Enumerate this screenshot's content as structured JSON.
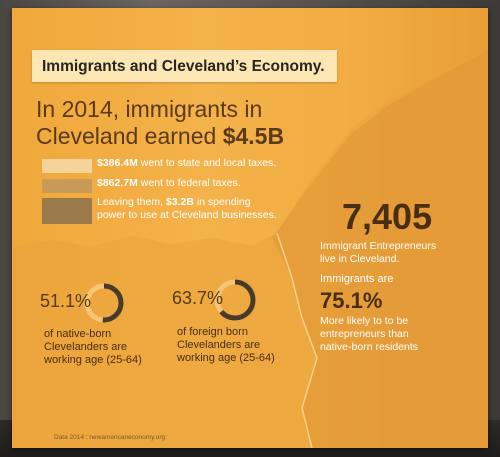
{
  "title": "Immigrants and Cleveland’s Economy.",
  "headline": {
    "line1": "In 2014, immigrants in",
    "line2_prefix": "Cleveland earned ",
    "line2_amount": "$4.5B"
  },
  "taxes": [
    {
      "amount": "$386.4M",
      "text": " went to state and local taxes.",
      "color": "#f6d39a"
    },
    {
      "amount": "$862.7M",
      "text": " went to federal taxes.",
      "color": "#c89a5a"
    },
    {
      "prefix": "Leaving them, ",
      "amount": "$3.2B",
      "text": " in spending",
      "line2": "power to use at Cleveland businesses.",
      "color": "#9a7a4a"
    }
  ],
  "entrepreneurs": {
    "number": "7,405",
    "desc_line1": "Immigrant Entrepreneurs",
    "desc_line2": "live in Cleveland."
  },
  "likely": {
    "label": "Immigrants are",
    "number": "75.1%",
    "desc_line1": "More likely to to be",
    "desc_line2": "entrepreneurs than",
    "desc_line3": "native-born residents"
  },
  "working_age": [
    {
      "pct": "51.1%",
      "value": 0.511,
      "line1": "of native-born",
      "line2": "Clevelanders are",
      "line3": "working age (25-64)"
    },
    {
      "pct": "63.7%",
      "value": 0.637,
      "line1": "of foreign born",
      "line2": "Clevelanders are",
      "line3": "working age (25-64)"
    }
  ],
  "source": "Data 2014 : newamericaneconomy.org",
  "colors": {
    "banner": "#f2ad44",
    "ring_dark": "#4a3a2a",
    "mountain": "#e39a38"
  }
}
